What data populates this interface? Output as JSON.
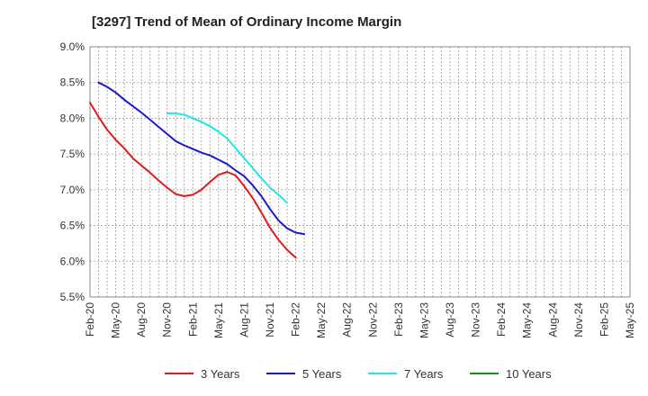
{
  "chart_data": {
    "type": "line",
    "title": "[3297]  Trend of Mean of Ordinary Income Margin",
    "xlabel": "",
    "ylabel": "",
    "ylim": [
      5.5,
      9.0
    ],
    "grid": true,
    "legend_position": "bottom",
    "y_ticks": [
      "9.0%",
      "8.5%",
      "8.0%",
      "7.5%",
      "7.0%",
      "6.5%",
      "6.0%",
      "5.5%"
    ],
    "x_ticks": [
      "Feb-20",
      "May-20",
      "Aug-20",
      "Nov-20",
      "Feb-21",
      "May-21",
      "Aug-21",
      "Nov-21",
      "Feb-22",
      "May-22",
      "Aug-22",
      "Nov-22",
      "Feb-23",
      "May-23",
      "Aug-23",
      "Nov-23",
      "Feb-24",
      "May-24",
      "Aug-24",
      "Nov-24",
      "Feb-25",
      "May-25"
    ],
    "series": [
      {
        "name": "3 Years",
        "color": "#e31a1c",
        "values": [
          8.22,
          8.02,
          7.84,
          7.7,
          7.58,
          7.44,
          7.34,
          7.24,
          7.13,
          7.03,
          6.94,
          6.91,
          6.93,
          7.0,
          7.11,
          7.21,
          7.25,
          7.2,
          7.05,
          6.88,
          6.68,
          6.47,
          6.3,
          6.16,
          6.05
        ],
        "start_index": 0
      },
      {
        "name": "5 Years",
        "color": "#1a1acd",
        "values": [
          8.5,
          8.44,
          8.36,
          8.26,
          8.17,
          8.08,
          7.98,
          7.88,
          7.78,
          7.68,
          7.62,
          7.57,
          7.52,
          7.48,
          7.42,
          7.36,
          7.27,
          7.19,
          7.06,
          6.91,
          6.73,
          6.57,
          6.46,
          6.4,
          6.38
        ],
        "start_index": 1
      },
      {
        "name": "7 Years",
        "color": "#22e5e5",
        "values": [
          8.07,
          8.07,
          8.05,
          8.0,
          7.95,
          7.89,
          7.81,
          7.72,
          7.58,
          7.44,
          7.3,
          7.16,
          7.03,
          6.93,
          6.82
        ],
        "start_index": 9
      },
      {
        "name": "10 Years",
        "color": "#1a8c1a",
        "values": [],
        "start_index": 0
      }
    ]
  }
}
